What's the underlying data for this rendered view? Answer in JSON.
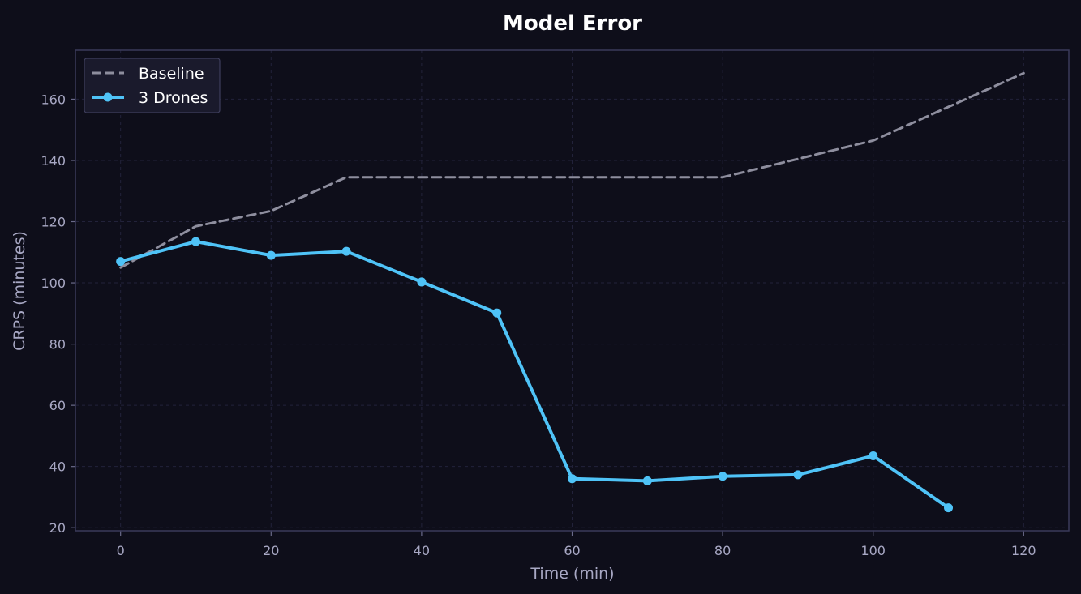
{
  "chart_data": {
    "type": "line",
    "title": "Model Error",
    "xlabel": "Time (min)",
    "ylabel": "CRPS (minutes)",
    "xlim": [
      -6,
      126
    ],
    "ylim": [
      19,
      176
    ],
    "xticks": [
      0,
      20,
      40,
      60,
      80,
      100,
      120
    ],
    "yticks": [
      20,
      40,
      60,
      80,
      100,
      120,
      140,
      160
    ],
    "grid": true,
    "legend_position": "top-left",
    "series": [
      {
        "name": "Baseline",
        "style": "dashed",
        "color": "#8e8e9e",
        "x": [
          0,
          10,
          20,
          30,
          40,
          50,
          60,
          70,
          80,
          90,
          100,
          110,
          120
        ],
        "y": [
          105,
          118.5,
          123.5,
          134.5,
          134.5,
          134.5,
          134.5,
          134.5,
          134.5,
          140.5,
          146.5,
          157.5,
          168.5
        ]
      },
      {
        "name": "3 Drones",
        "style": "solid-markers",
        "color": "#4fc3f7",
        "x": [
          0,
          10,
          20,
          30,
          40,
          50,
          60,
          70,
          80,
          90,
          100,
          110
        ],
        "y": [
          107,
          113.5,
          109,
          110.3,
          100.3,
          90.2,
          36,
          35.3,
          36.8,
          37.3,
          43.5,
          26.5
        ]
      }
    ]
  }
}
